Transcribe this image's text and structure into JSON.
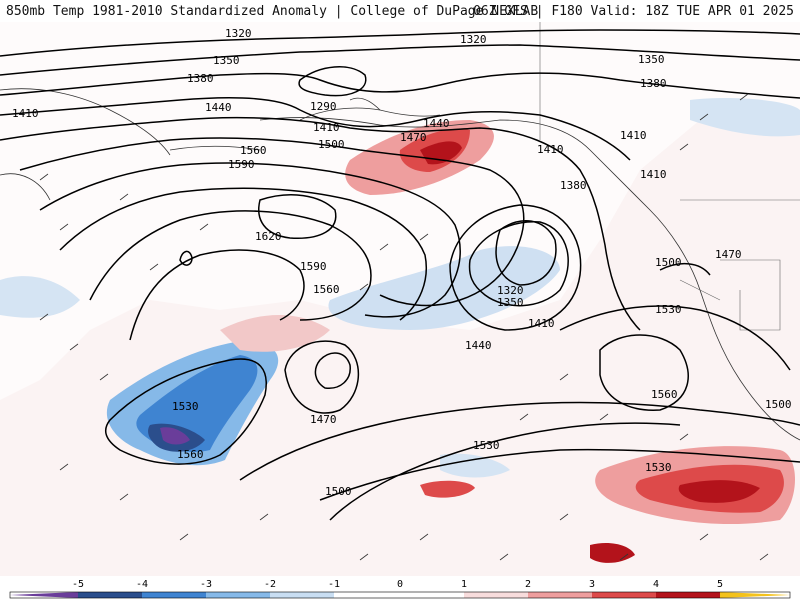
{
  "header": {
    "left_title": "850mb Temp 1981-2010 Standardized Anomaly | College of DuPage NEXLAB",
    "right_title": "06Z GFS | F180 Valid: 18Z TUE APR 01 2025"
  },
  "map": {
    "field": "850mb Temp Standardized Anomaly",
    "contour_labels": [
      "1320",
      "1350",
      "1380",
      "1410",
      "1440",
      "1470",
      "1500",
      "1530",
      "1560",
      "1590",
      "1620",
      "1290",
      "1320",
      "1350",
      "1380",
      "1410",
      "1410",
      "1440",
      "1470",
      "1500",
      "1530",
      "1560",
      "1470",
      "1500",
      "1530",
      "1560",
      "1560",
      "1590",
      "1500",
      "1530",
      "1410",
      "1410",
      "1380"
    ]
  },
  "colorbar": {
    "ticks": [
      "-5",
      "-4",
      "-3",
      "-2",
      "-1",
      "0",
      "1",
      "2",
      "3",
      "4",
      "5"
    ],
    "colors": [
      "#6a3d9a",
      "#2b4e8c",
      "#3f84d1",
      "#86b9e8",
      "#c9def2",
      "#ffffff",
      "#f7dcdc",
      "#ee9e9e",
      "#dd4a4a",
      "#b3131b",
      "#6e0a15",
      "#f4c21b"
    ]
  }
}
